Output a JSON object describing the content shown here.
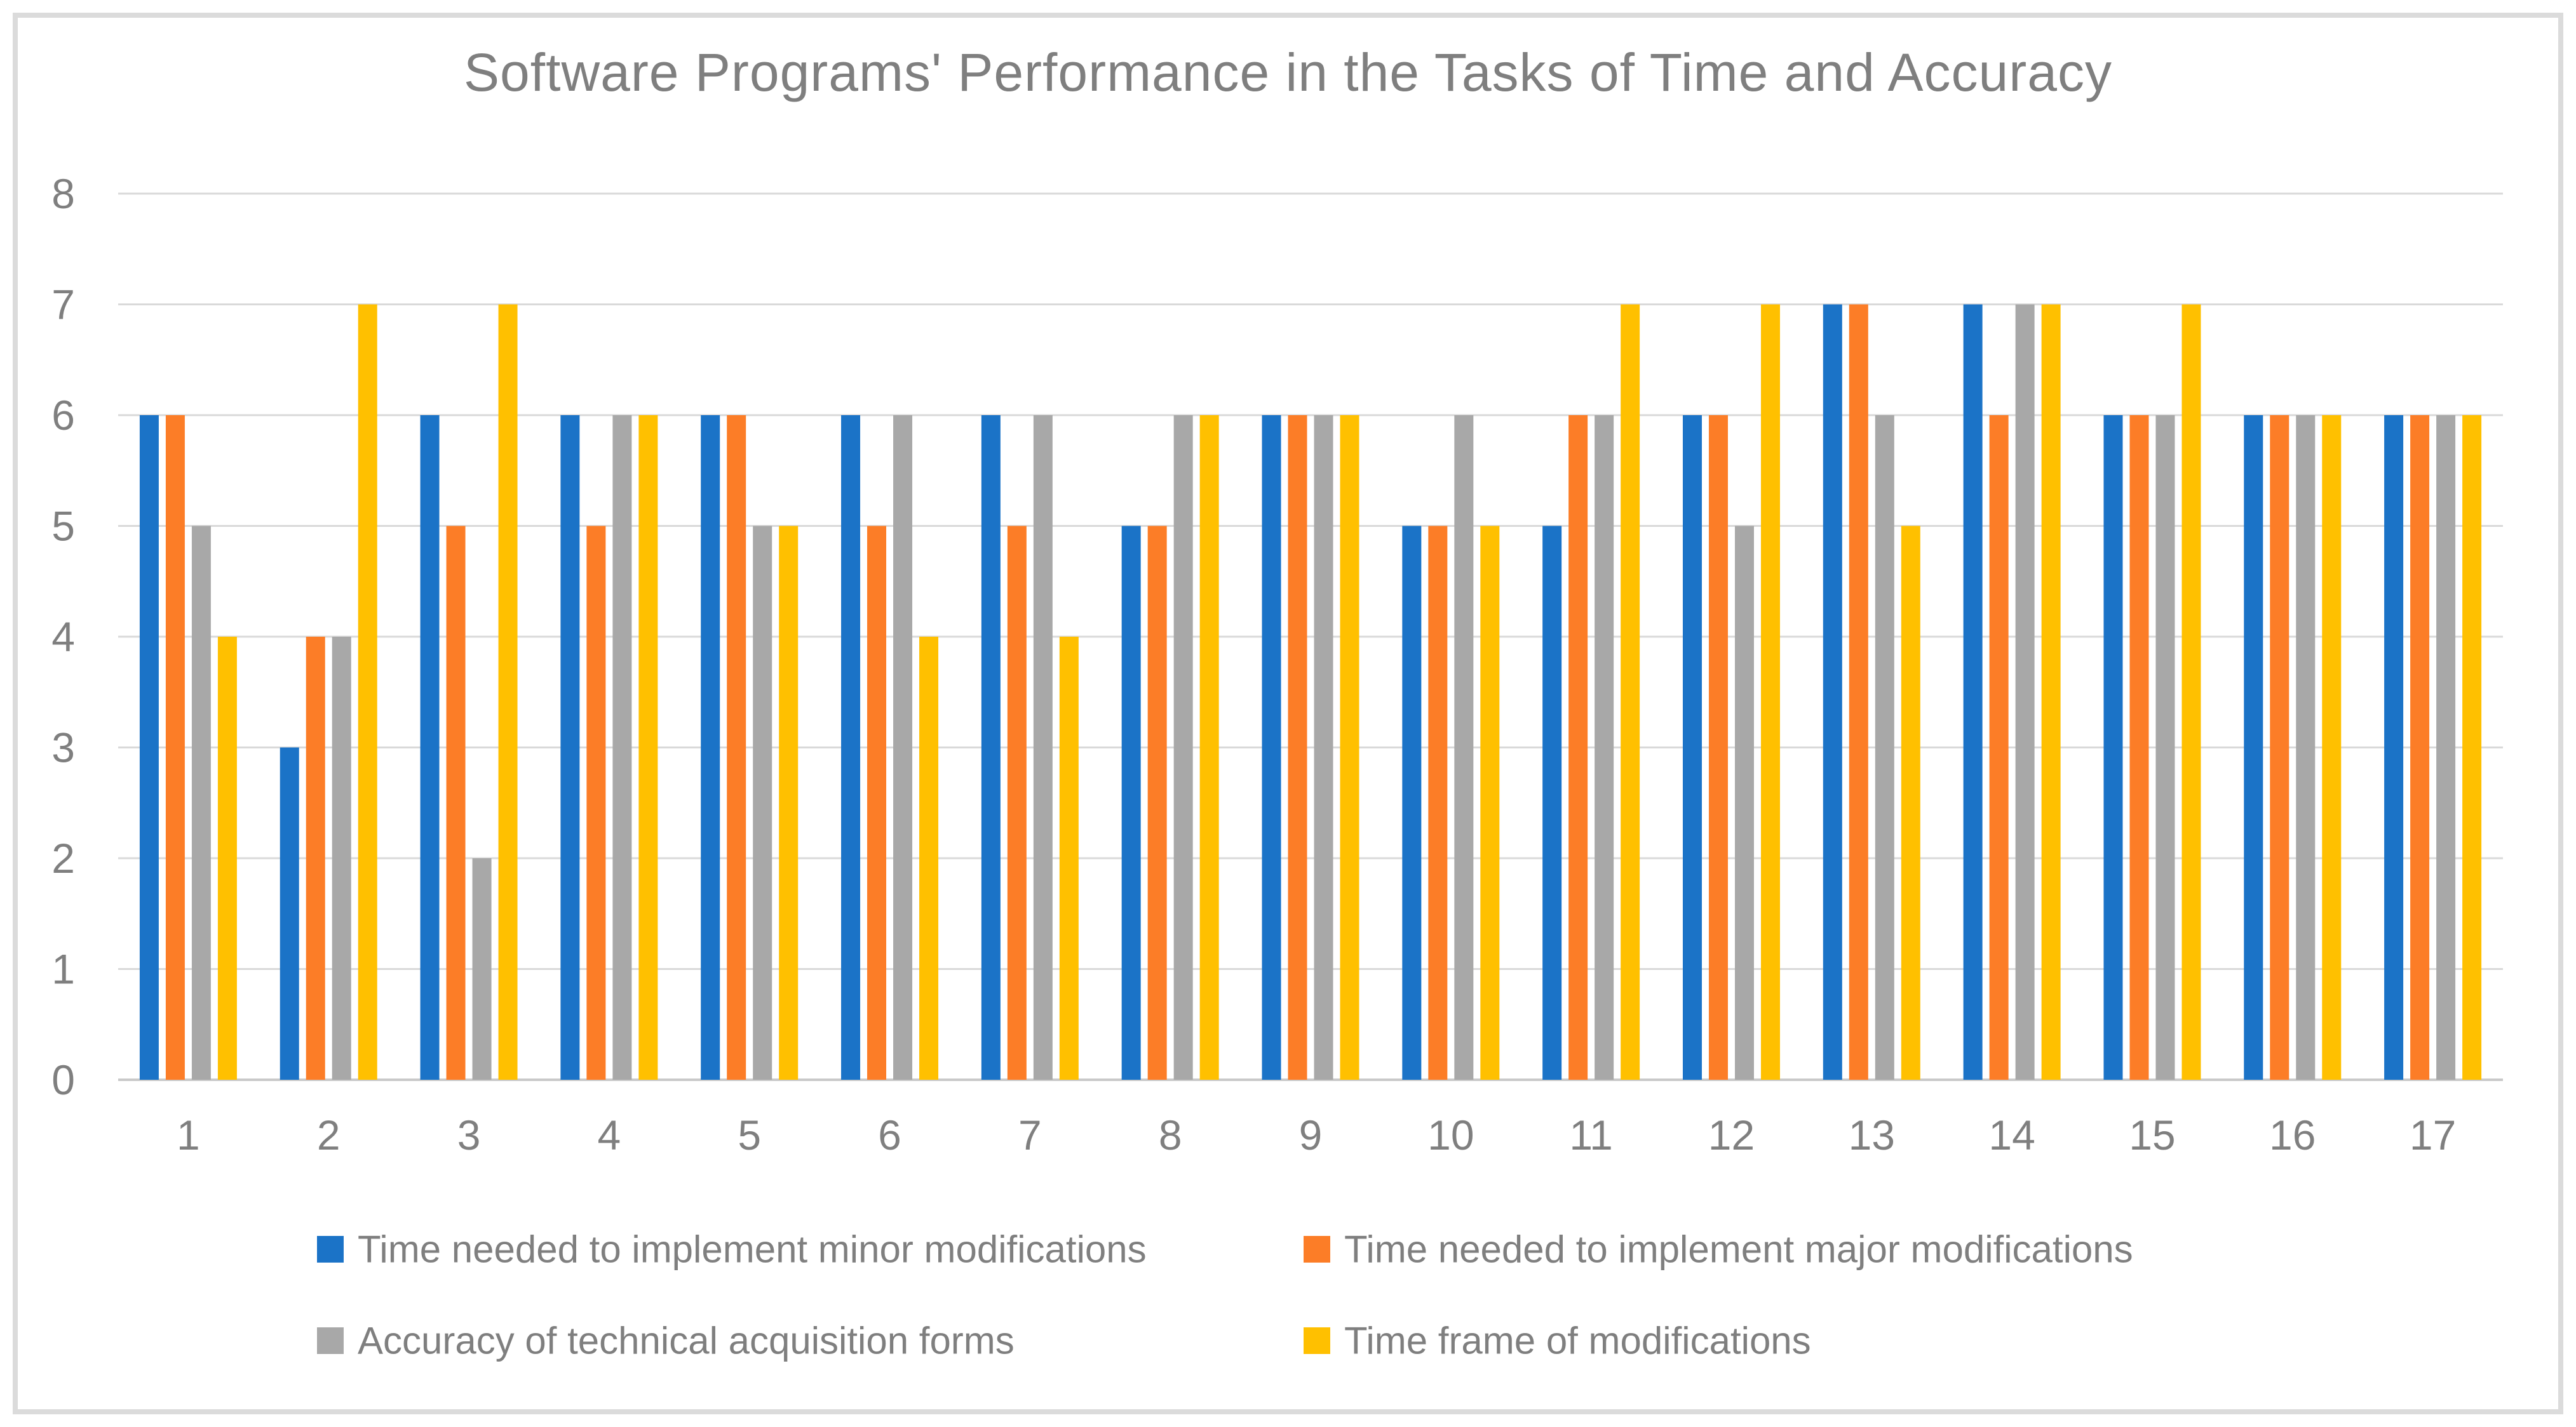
{
  "chart_data": {
    "type": "bar",
    "title": "Software Programs' Performance in the Tasks of Time and Accuracy",
    "categories": [
      "1",
      "2",
      "3",
      "4",
      "5",
      "6",
      "7",
      "8",
      "9",
      "10",
      "11",
      "12",
      "13",
      "14",
      "15",
      "16",
      "17"
    ],
    "series": [
      {
        "name": "Time needed to implement minor modifications",
        "color": "#1B73C7",
        "values": [
          6,
          3,
          6,
          6,
          6,
          6,
          6,
          5,
          6,
          5,
          5,
          6,
          7,
          7,
          6,
          6,
          6
        ]
      },
      {
        "name": "Time needed to implement major modifications",
        "color": "#FC7D27",
        "values": [
          6,
          4,
          5,
          5,
          6,
          5,
          5,
          5,
          6,
          5,
          6,
          6,
          7,
          6,
          6,
          6,
          6
        ]
      },
      {
        "name": "Accuracy of technical acquisition forms",
        "color": "#A8A8A8",
        "values": [
          5,
          4,
          2,
          6,
          5,
          6,
          6,
          6,
          6,
          6,
          6,
          5,
          6,
          7,
          6,
          6,
          6
        ]
      },
      {
        "name": "Time frame of modifications",
        "color": "#FFC000",
        "values": [
          4,
          7,
          7,
          6,
          5,
          4,
          4,
          6,
          6,
          5,
          7,
          7,
          5,
          7,
          7,
          6,
          6
        ]
      }
    ],
    "xlabel": "",
    "ylabel": "",
    "ylim": [
      0,
      8
    ],
    "ytick_step": 1,
    "yticks": [
      "0",
      "1",
      "2",
      "3",
      "4",
      "5",
      "6",
      "7",
      "8"
    ],
    "grid": true,
    "legend_position": "bottom",
    "colors": {
      "text": "#7F7F7F",
      "gridline": "#D9D9D9",
      "axisline": "#C9C9C9",
      "frame_border": "#DBDBDB",
      "background": "#FFFFFF"
    }
  }
}
